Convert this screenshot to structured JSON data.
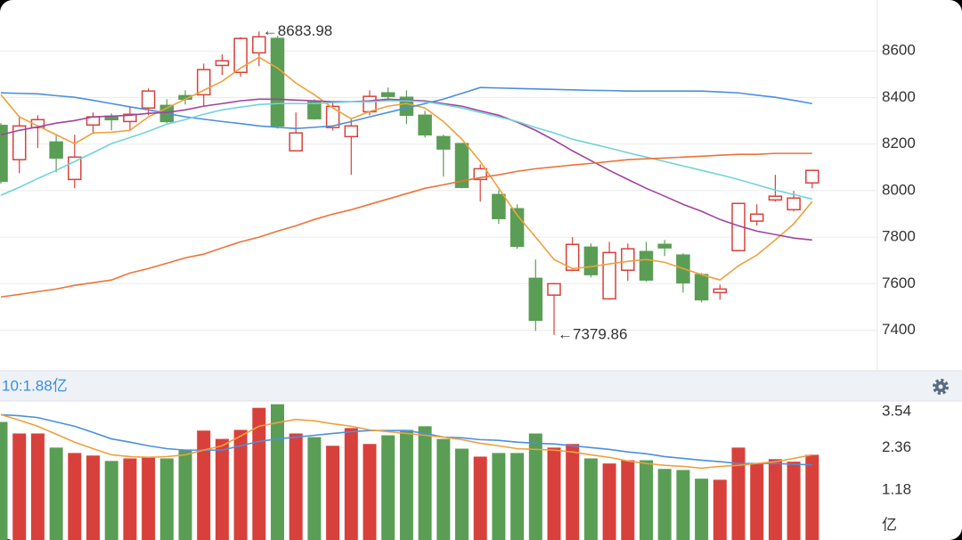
{
  "chart_data": [
    {
      "type": "candlestick",
      "open": [
        8280,
        8133,
        8271,
        8209,
        8048,
        8282,
        8320,
        8297,
        8355,
        8366,
        8408,
        8412,
        8538,
        8508,
        8592,
        8654,
        8171,
        8381,
        8271,
        8232,
        8339,
        8420,
        8401,
        8324,
        8232,
        8202,
        8048,
        7983,
        7922,
        7623,
        7551,
        7658,
        7757,
        7535,
        7658,
        7738,
        7769,
        7723,
        7639,
        7562,
        7742,
        7869,
        7960,
        7918,
        8033
      ],
      "high": [
        8290,
        8317,
        8324,
        8240,
        8240,
        8336,
        8332,
        8362,
        8439,
        8393,
        8431,
        8546,
        8585,
        8660,
        8683.98,
        8665,
        8336,
        8393,
        8385,
        8309,
        8431,
        8443,
        8431,
        8343,
        8240,
        8205,
        8113,
        8002,
        7941,
        7704,
        7603,
        7800,
        7773,
        7780,
        7773,
        7780,
        7788,
        7731,
        7646,
        7596,
        7945,
        7941,
        8068,
        7999,
        8087
      ],
      "low": [
        8030,
        8075,
        8183,
        8079,
        8010,
        8248,
        8259,
        8259,
        8324,
        8290,
        8370,
        8366,
        8497,
        8489,
        8535,
        8267,
        8171,
        8305,
        8259,
        8068,
        8324,
        8385,
        8286,
        8228,
        8060,
        8010,
        7953,
        7857,
        7750,
        7397,
        7379.86,
        7654,
        7627,
        7531,
        7612,
        7608,
        7719,
        7562,
        7520,
        7531,
        7742,
        7850,
        7953,
        7911,
        8010
      ],
      "close": [
        8040,
        8278,
        8305,
        8140,
        8144,
        8317,
        8305,
        8328,
        8428,
        8297,
        8393,
        8520,
        8558,
        8654,
        8661,
        8278,
        8248,
        8309,
        8362,
        8278,
        8405,
        8405,
        8324,
        8240,
        8179,
        8014,
        8094,
        7880,
        7761,
        7443,
        7600,
        7769,
        7639,
        7734,
        7750,
        7616,
        7754,
        7604,
        7531,
        7577,
        7945,
        7899,
        7976,
        7968,
        8087
      ],
      "up_color": "#d8413b",
      "down_color": "#5a9e55",
      "lines": [
        {
          "color": "#f0a03c",
          "values": [
            8412,
            8317,
            8278,
            8240,
            8202,
            8248,
            8251,
            8259,
            8317,
            8355,
            8393,
            8431,
            8470,
            8527,
            8573,
            8527,
            8462,
            8412,
            8355,
            8309,
            8340,
            8363,
            8374,
            8355,
            8297,
            8221,
            8125,
            8010,
            7895,
            7800,
            7704,
            7665,
            7673,
            7685,
            7696,
            7704,
            7692,
            7665,
            7639,
            7616,
            7677,
            7723,
            7788,
            7857,
            7953
          ]
        },
        {
          "color": "#4a8fe0",
          "values": [
            8420,
            8418,
            8416,
            8408,
            8401,
            8388,
            8374,
            8360,
            8347,
            8332,
            8317,
            8307,
            8297,
            8288,
            8278,
            8272,
            8267,
            8272,
            8278,
            8297,
            8317,
            8336,
            8355,
            8374,
            8393,
            8418,
            8443,
            8441,
            8439,
            8437,
            8435,
            8433,
            8431,
            8430,
            8428,
            8428,
            8428,
            8428,
            8428,
            8424,
            8420,
            8410,
            8401,
            8388,
            8374
          ]
        },
        {
          "color": "#a0449e",
          "values": [
            8240,
            8259,
            8274,
            8290,
            8301,
            8317,
            8320,
            8324,
            8332,
            8336,
            8347,
            8363,
            8374,
            8386,
            8393,
            8393,
            8389,
            8386,
            8382,
            8382,
            8386,
            8393,
            8389,
            8386,
            8374,
            8363,
            8343,
            8324,
            8294,
            8259,
            8217,
            8171,
            8129,
            8087,
            8048,
            8010,
            7976,
            7941,
            7911,
            7876,
            7849,
            7826,
            7811,
            7796,
            7788
          ]
        },
        {
          "color": "#6fd3dc",
          "values": [
            7980,
            8014,
            8052,
            8087,
            8125,
            8163,
            8202,
            8228,
            8255,
            8286,
            8305,
            8328,
            8347,
            8359,
            8370,
            8374,
            8374,
            8374,
            8378,
            8382,
            8382,
            8386,
            8386,
            8382,
            8370,
            8355,
            8336,
            8317,
            8297,
            8271,
            8248,
            8221,
            8202,
            8183,
            8163,
            8144,
            8125,
            8106,
            8087,
            8068,
            8048,
            8025,
            8002,
            7983,
            7964
          ]
        },
        {
          "color": "#ee7336",
          "values": [
            7543,
            7554,
            7566,
            7577,
            7593,
            7604,
            7616,
            7646,
            7665,
            7688,
            7711,
            7727,
            7754,
            7780,
            7800,
            7826,
            7849,
            7876,
            7899,
            7918,
            7941,
            7964,
            7987,
            8010,
            8025,
            8041,
            8056,
            8068,
            8083,
            8094,
            8102,
            8110,
            8117,
            8125,
            8133,
            8137,
            8140,
            8144,
            8148,
            8152,
            8156,
            8156,
            8160,
            8160,
            8160
          ]
        }
      ],
      "annotations": [
        "←8683.98",
        "←7379.86"
      ],
      "ylim": [
        7230,
        8800
      ],
      "yticks": [
        7400,
        7600,
        7800,
        8000,
        8200,
        8400,
        8600
      ],
      "grid": true
    },
    {
      "type": "bar",
      "label": "10:1.88亿",
      "values": [
        3.07,
        2.75,
        2.75,
        2.36,
        2.21,
        2.14,
        1.99,
        2.06,
        2.11,
        2.06,
        2.29,
        2.83,
        2.6,
        2.85,
        3.46,
        3.56,
        2.75,
        2.65,
        2.41,
        2.9,
        2.46,
        2.7,
        2.85,
        2.95,
        2.6,
        2.33,
        2.11,
        2.21,
        2.21,
        2.75,
        2.36,
        2.46,
        2.06,
        1.92,
        2.01,
        2.01,
        1.77,
        1.74,
        1.5,
        1.47,
        2.36,
        1.92,
        2.04,
        1.97,
        2.16
      ],
      "lines": [
        {
          "color": "#4a8fe0",
          "values": [
            3.27,
            3.24,
            3.19,
            3.07,
            2.95,
            2.78,
            2.6,
            2.51,
            2.41,
            2.33,
            2.29,
            2.29,
            2.29,
            2.41,
            2.53,
            2.6,
            2.65,
            2.7,
            2.75,
            2.8,
            2.83,
            2.83,
            2.83,
            2.75,
            2.65,
            2.63,
            2.58,
            2.56,
            2.51,
            2.48,
            2.46,
            2.41,
            2.36,
            2.31,
            2.24,
            2.19,
            2.11,
            2.06,
            2.01,
            1.97,
            1.92,
            1.92,
            1.92,
            1.9,
            1.88
          ]
        },
        {
          "color": "#f0a03c",
          "values": [
            3.27,
            3.12,
            2.95,
            2.73,
            2.51,
            2.33,
            2.16,
            2.11,
            2.09,
            2.11,
            2.16,
            2.29,
            2.41,
            2.68,
            2.95,
            3.05,
            3.14,
            3.1,
            3.02,
            2.95,
            2.85,
            2.8,
            2.75,
            2.7,
            2.65,
            2.58,
            2.48,
            2.41,
            2.33,
            2.31,
            2.29,
            2.24,
            2.16,
            2.09,
            1.99,
            1.92,
            1.87,
            1.84,
            1.79,
            1.84,
            1.87,
            1.92,
            1.97,
            2.06,
            2.16
          ]
        }
      ],
      "ylim": [
        0,
        3.6
      ],
      "yticks": [
        1.18,
        2.36,
        3.54
      ],
      "unit": "亿"
    }
  ]
}
